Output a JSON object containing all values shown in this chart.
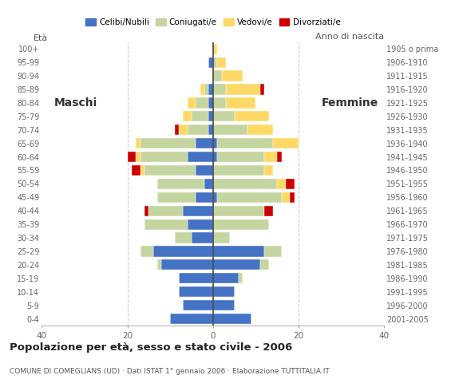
{
  "age_groups": [
    "0-4",
    "5-9",
    "10-14",
    "15-19",
    "20-24",
    "25-29",
    "30-34",
    "35-39",
    "40-44",
    "45-49",
    "50-54",
    "55-59",
    "60-64",
    "65-69",
    "70-74",
    "75-79",
    "80-84",
    "85-89",
    "90-94",
    "95-99",
    "100+"
  ],
  "birth_years": [
    "2001-2005",
    "1996-2000",
    "1991-1995",
    "1986-1990",
    "1981-1985",
    "1976-1980",
    "1971-1975",
    "1966-1970",
    "1961-1965",
    "1956-1960",
    "1951-1955",
    "1946-1950",
    "1941-1945",
    "1936-1940",
    "1931-1935",
    "1926-1930",
    "1921-1925",
    "1916-1920",
    "1911-1915",
    "1906-1910",
    "1905 o prima"
  ],
  "males": {
    "celibe": [
      10,
      7,
      8,
      8,
      12,
      14,
      5,
      6,
      7,
      4,
      2,
      4,
      6,
      4,
      1,
      1,
      1,
      1,
      0,
      1,
      0
    ],
    "coniugato": [
      0,
      0,
      0,
      0,
      1,
      3,
      4,
      10,
      8,
      9,
      11,
      12,
      11,
      13,
      5,
      4,
      3,
      1,
      0,
      0,
      0
    ],
    "vedovo": [
      0,
      0,
      0,
      0,
      0,
      0,
      0,
      0,
      0,
      0,
      0,
      1,
      1,
      1,
      2,
      2,
      2,
      1,
      0,
      0,
      0
    ],
    "divorziato": [
      0,
      0,
      0,
      0,
      0,
      0,
      0,
      0,
      1,
      0,
      0,
      2,
      2,
      0,
      1,
      0,
      0,
      0,
      0,
      0,
      0
    ]
  },
  "females": {
    "nubile": [
      9,
      5,
      5,
      6,
      11,
      12,
      0,
      0,
      0,
      1,
      0,
      0,
      1,
      1,
      0,
      0,
      0,
      0,
      0,
      0,
      0
    ],
    "coniugata": [
      0,
      0,
      0,
      1,
      2,
      4,
      4,
      13,
      12,
      15,
      15,
      12,
      11,
      13,
      8,
      5,
      3,
      3,
      2,
      1,
      0
    ],
    "vedova": [
      0,
      0,
      0,
      0,
      0,
      0,
      0,
      0,
      0,
      2,
      2,
      2,
      3,
      6,
      6,
      8,
      7,
      8,
      5,
      2,
      1
    ],
    "divorziata": [
      0,
      0,
      0,
      0,
      0,
      0,
      0,
      0,
      2,
      1,
      2,
      0,
      1,
      0,
      0,
      0,
      0,
      1,
      0,
      0,
      0
    ]
  },
  "color_celibe": "#4472c4",
  "color_coniugato": "#c5d5a0",
  "color_vedovo": "#ffd966",
  "color_divorziato": "#cc0000",
  "xlim": 40,
  "title": "Popolazione per età, sesso e stato civile - 2006",
  "subtitle": "COMUNE DI COMEGLIANS (UD) · Dati ISTAT 1° gennaio 2006 · Elaborazione TUTTITALIA.IT",
  "ylabel_left": "Età",
  "ylabel_right": "Anno di nascita",
  "label_maschi": "Maschi",
  "label_femmine": "Femmine",
  "legend_labels": [
    "Celibi/Nubili",
    "Coniugati/e",
    "Vedovi/e",
    "Divorziati/e"
  ],
  "background_color": "#ffffff"
}
